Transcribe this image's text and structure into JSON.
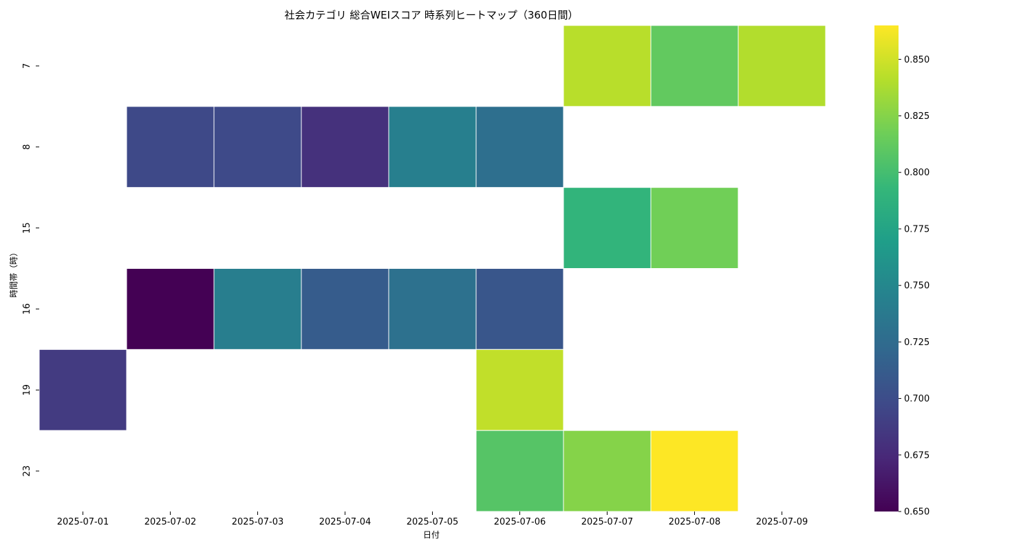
{
  "chart_data": {
    "type": "heatmap",
    "title": "社会カテゴリ 総合WEIスコア 時系列ヒートマップ（360日間）",
    "xlabel": "日付",
    "ylabel": "時間帯（時）",
    "x_categories": [
      "2025-07-01",
      "2025-07-02",
      "2025-07-03",
      "2025-07-04",
      "2025-07-05",
      "2025-07-06",
      "2025-07-07",
      "2025-07-08",
      "2025-07-09"
    ],
    "y_categories": [
      "7",
      "8",
      "15",
      "16",
      "19",
      "23"
    ],
    "values": [
      [
        null,
        null,
        null,
        null,
        null,
        null,
        0.842,
        0.812,
        0.84
      ],
      [
        null,
        0.697,
        0.698,
        0.68,
        0.743,
        0.728,
        null,
        null,
        null
      ],
      [
        null,
        null,
        null,
        null,
        null,
        null,
        0.79,
        0.818,
        null
      ],
      [
        null,
        0.65,
        0.742,
        0.712,
        0.73,
        0.707,
        null,
        null,
        null
      ],
      [
        0.687,
        null,
        null,
        null,
        null,
        0.845,
        null,
        null,
        null
      ],
      [
        null,
        null,
        null,
        null,
        null,
        0.807,
        0.825,
        0.865,
        null
      ]
    ],
    "colorscale": "viridis",
    "vmin": 0.65,
    "vmax": 0.865,
    "colorbar_ticks": [
      "0.650",
      "0.675",
      "0.700",
      "0.725",
      "0.750",
      "0.775",
      "0.800",
      "0.825",
      "0.850"
    ],
    "grid": false
  }
}
